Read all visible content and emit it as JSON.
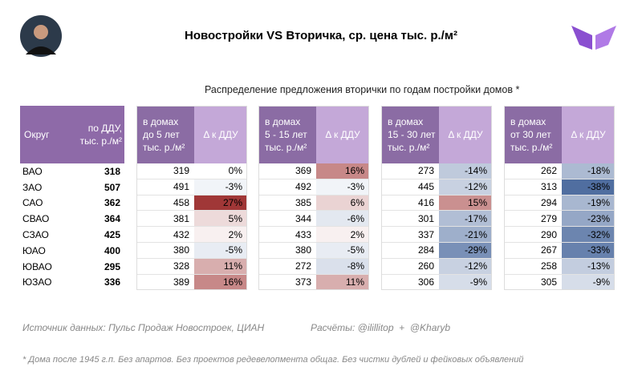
{
  "header": {
    "title": "Новостройки VS Вторичка, ср. цена тыс. р./м²",
    "subtitle": "Распределение предложения вторички по годам постройки домов *"
  },
  "table": {
    "district_header": "Округ",
    "ddu_header": "по ДДУ,\nтыс. р./м²",
    "groups": [
      {
        "price_header": "в домах\nдо 5 лет\nтыс. р./м²",
        "delta_header": "Δ к ДДУ"
      },
      {
        "price_header": "в домах\n5 - 15 лет\nтыс. р./м²",
        "delta_header": "Δ к ДДУ"
      },
      {
        "price_header": "в домах\n15 - 30 лет\nтыс. р./м²",
        "delta_header": "Δ к ДДУ"
      },
      {
        "price_header": "в домах\nот 30 лет\nтыс. р./м²",
        "delta_header": "Δ к ДДУ"
      }
    ],
    "rows": [
      [
        "ВАО",
        "318",
        "319",
        "0%",
        "369",
        "16%",
        "273",
        "-14%",
        "262",
        "-18%"
      ],
      [
        "ЗАО",
        "507",
        "491",
        "-3%",
        "492",
        "-3%",
        "445",
        "-12%",
        "313",
        "-38%"
      ],
      [
        "САО",
        "362",
        "458",
        "27%",
        "385",
        "6%",
        "416",
        "15%",
        "294",
        "-19%"
      ],
      [
        "СВАО",
        "364",
        "381",
        "5%",
        "344",
        "-6%",
        "301",
        "-17%",
        "279",
        "-23%"
      ],
      [
        "СЗАО",
        "425",
        "432",
        "2%",
        "433",
        "2%",
        "337",
        "-21%",
        "290",
        "-32%"
      ],
      [
        "ЮАО",
        "400",
        "380",
        "-5%",
        "380",
        "-5%",
        "284",
        "-29%",
        "267",
        "-33%"
      ],
      [
        "ЮВАО",
        "295",
        "328",
        "11%",
        "272",
        "-8%",
        "260",
        "-12%",
        "258",
        "-13%"
      ],
      [
        "ЮЗАО",
        "336",
        "389",
        "16%",
        "373",
        "11%",
        "306",
        "-9%",
        "305",
        "-9%"
      ]
    ]
  },
  "footer": {
    "source": "Источник данных: Пульс Продаж Новостроек, ЦИАН",
    "credits": "Расчёты: @ilillitop  +  @Kharyb",
    "note": "* Дома после 1945 г.п. Без апартов. Без проектов редевелопмента общаг. Без чистки дублей и фейковых объявлений"
  }
}
